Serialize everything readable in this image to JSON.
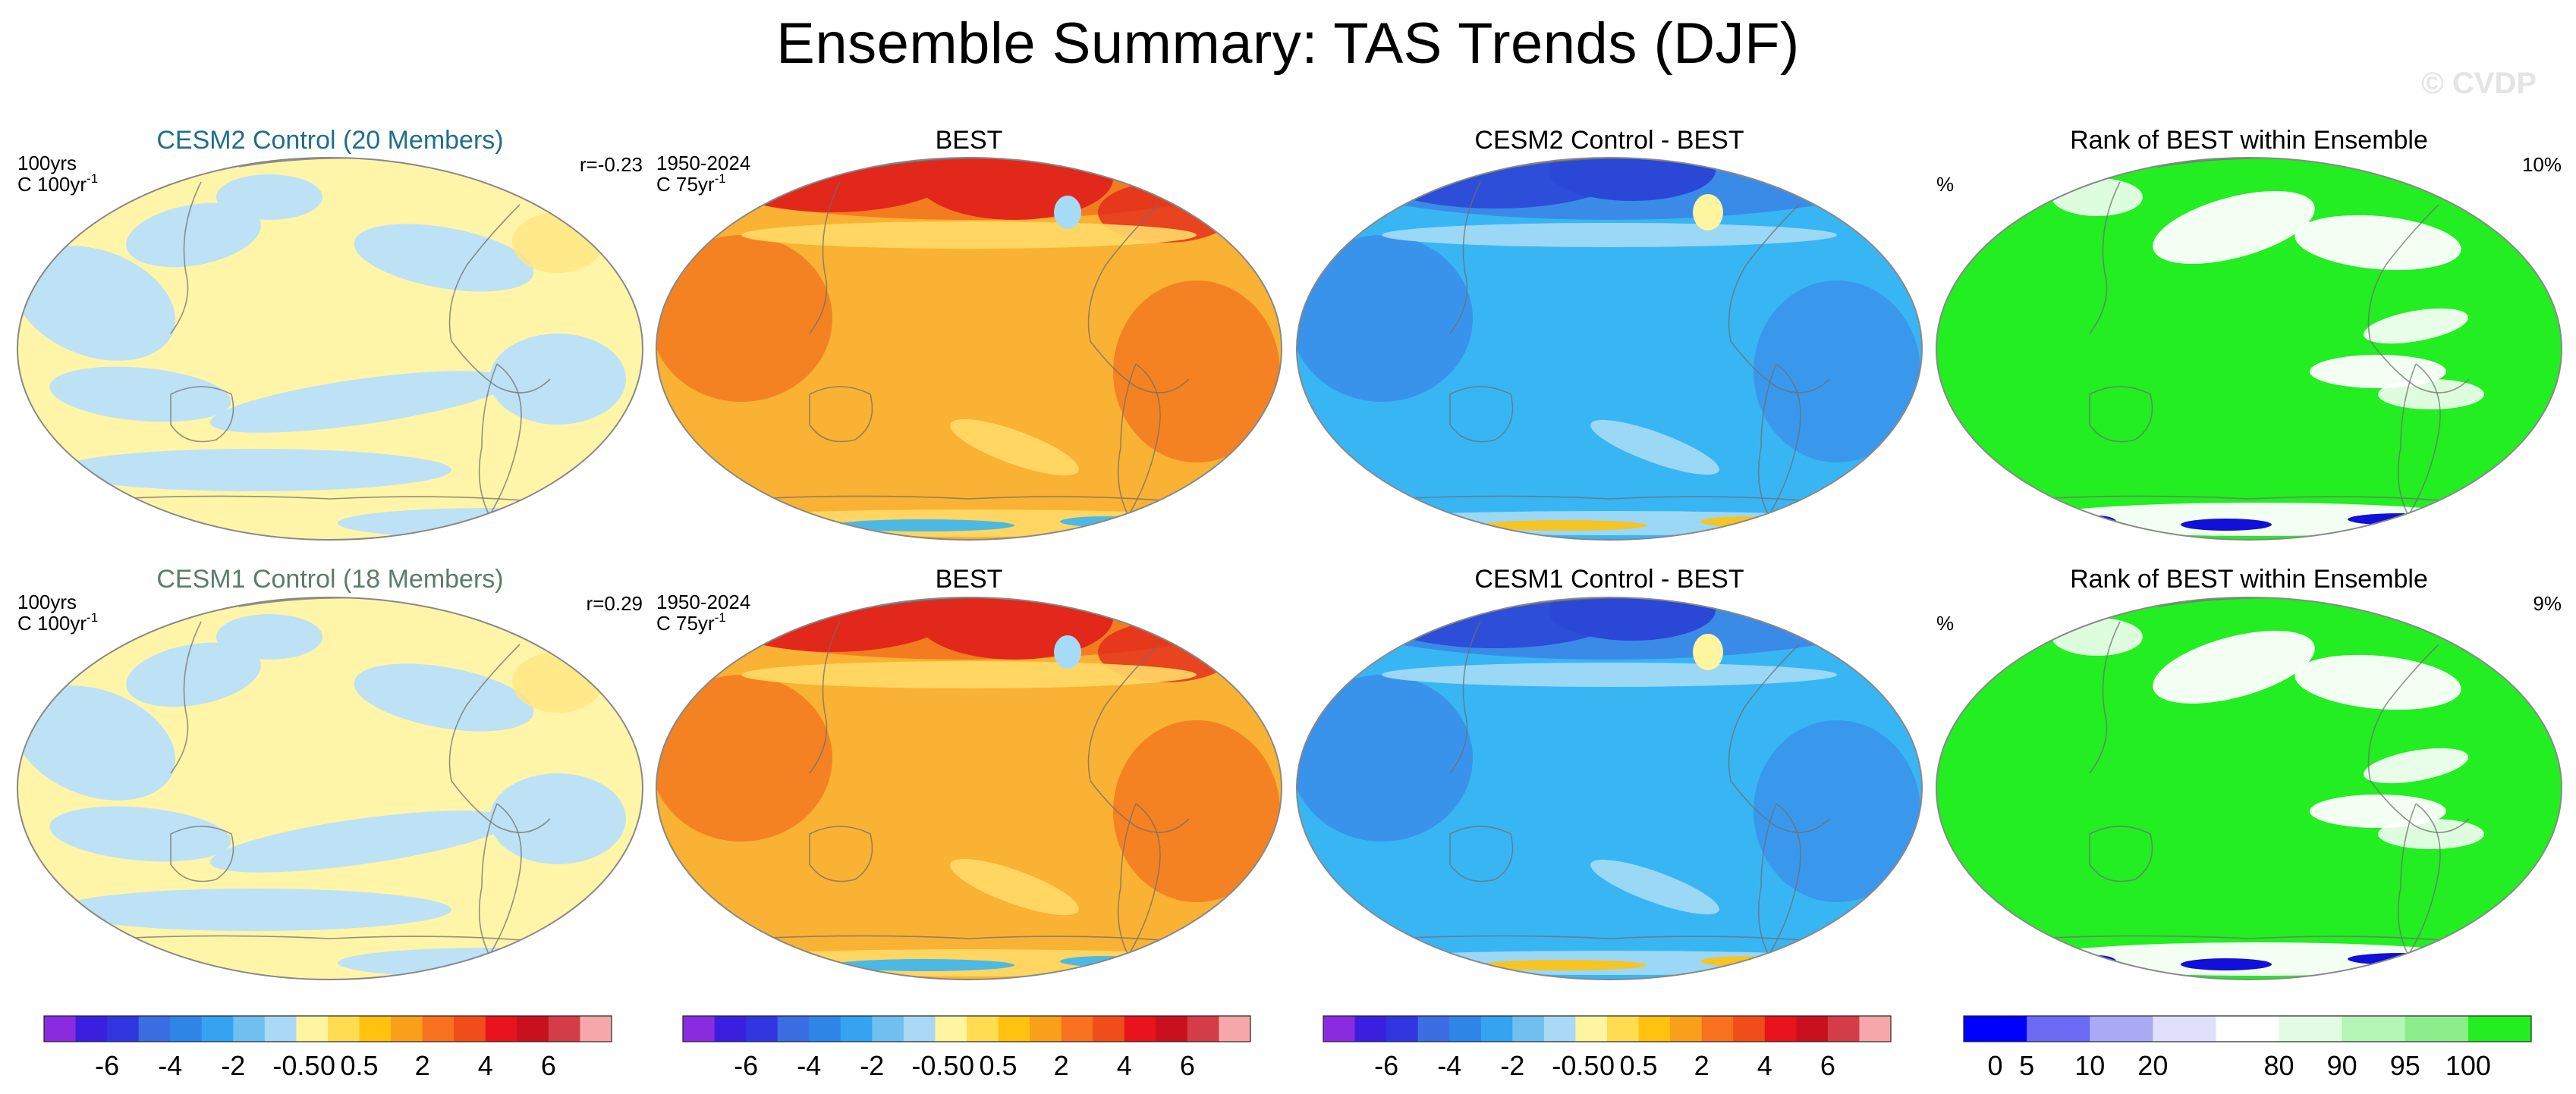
{
  "title": "Ensemble Summary: TAS Trends (DJF)",
  "watermark": "© CVDP",
  "panels": [
    {
      "row": 0,
      "col": 0,
      "title": "CESM2 Control (20 Members)",
      "title_color": "#1f6e8c",
      "left_label_1": "100yrs",
      "left_label_2": "C 100yr",
      "left_label_sup": "-1",
      "right_label": "r=-0.23",
      "style": "pale"
    },
    {
      "row": 0,
      "col": 1,
      "title": "BEST",
      "title_color": "#000000",
      "left_label_1": "1950-2024",
      "left_label_2": "C 75yr",
      "left_label_sup": "-1",
      "right_label": "",
      "style": "warm"
    },
    {
      "row": 0,
      "col": 2,
      "title": "CESM2 Control - BEST",
      "title_color": "#000000",
      "left_label_1": "",
      "left_label_2": "",
      "left_label_sup": "",
      "right_label": "",
      "style": "cool"
    },
    {
      "row": 0,
      "col": 3,
      "title": "Rank of BEST within Ensemble",
      "title_color": "#000000",
      "left_label_1": "",
      "left_label_2": "%",
      "left_label_sup": "",
      "right_label": "10%",
      "style": "rank"
    },
    {
      "row": 1,
      "col": 0,
      "title": "CESM1 Control (18 Members)",
      "title_color": "#5a7d6a",
      "left_label_1": "100yrs",
      "left_label_2": "C 100yr",
      "left_label_sup": "-1",
      "right_label": "r=0.29",
      "style": "pale"
    },
    {
      "row": 1,
      "col": 1,
      "title": "BEST",
      "title_color": "#000000",
      "left_label_1": "1950-2024",
      "left_label_2": "C 75yr",
      "left_label_sup": "-1",
      "right_label": "",
      "style": "warm"
    },
    {
      "row": 1,
      "col": 2,
      "title": "CESM1 Control - BEST",
      "title_color": "#000000",
      "left_label_1": "",
      "left_label_2": "",
      "left_label_sup": "",
      "right_label": "",
      "style": "cool"
    },
    {
      "row": 1,
      "col": 3,
      "title": "Rank of BEST within Ensemble",
      "title_color": "#000000",
      "left_label_1": "",
      "left_label_2": "%",
      "left_label_sup": "",
      "right_label": "9%",
      "style": "rank"
    }
  ],
  "chart_data": {
    "type": "heatmap",
    "title": "Ensemble Summary: TAS Trends (DJF)",
    "colorbars": [
      {
        "name": "trend",
        "colors": [
          "#8a2be2",
          "#3a1fe0",
          "#2f36e0",
          "#3b6ee3",
          "#2f86e8",
          "#33a3f2",
          "#6fc0ef",
          "#a9d9f5",
          "#fff5a0",
          "#ffdc50",
          "#ffc20e",
          "#f9a01b",
          "#f7711e",
          "#f04d1a",
          "#e8131b",
          "#c8101e",
          "#d43d47",
          "#f6a7a9"
        ],
        "tick_labels": [
          "-6",
          "-4",
          "-2",
          "-0.5",
          "0",
          "0.5",
          "2",
          "4",
          "6"
        ],
        "tick_boundaries": [
          2,
          4,
          6,
          8,
          9,
          10,
          12,
          14,
          16
        ],
        "panels_col": [
          0,
          1,
          2
        ]
      },
      {
        "name": "rank",
        "colors": [
          "#0000ff",
          "#6a6af5",
          "#a9aaf3",
          "#e0e0fb",
          "#ffffff",
          "#e2fbe2",
          "#b5f5b5",
          "#8bee8b",
          "#22ee22"
        ],
        "tick_labels": [
          "0",
          "5",
          "10",
          "20",
          "80",
          "90",
          "95",
          "100"
        ],
        "tick_boundaries": [
          0.5,
          1,
          2,
          3,
          5,
          6,
          7,
          8
        ],
        "panels_col": [
          3
        ]
      }
    ]
  },
  "colors": {
    "pale_bg": "#fff5a8",
    "pale_blue": "#bde2f5",
    "pale_yellow2": "#ffe680",
    "warm_bg": "#f9b233",
    "warm_orange": "#f47c20",
    "warm_red": "#e2281a",
    "warm_light": "#ffd966",
    "cool_bg": "#38b6f4",
    "cool_mid": "#3a8be8",
    "cool_dark": "#2b47d6",
    "cool_light": "#a6dbf6",
    "rank_green": "#22ee22",
    "rank_white": "#ffffff",
    "rank_blue": "#1010d8"
  }
}
